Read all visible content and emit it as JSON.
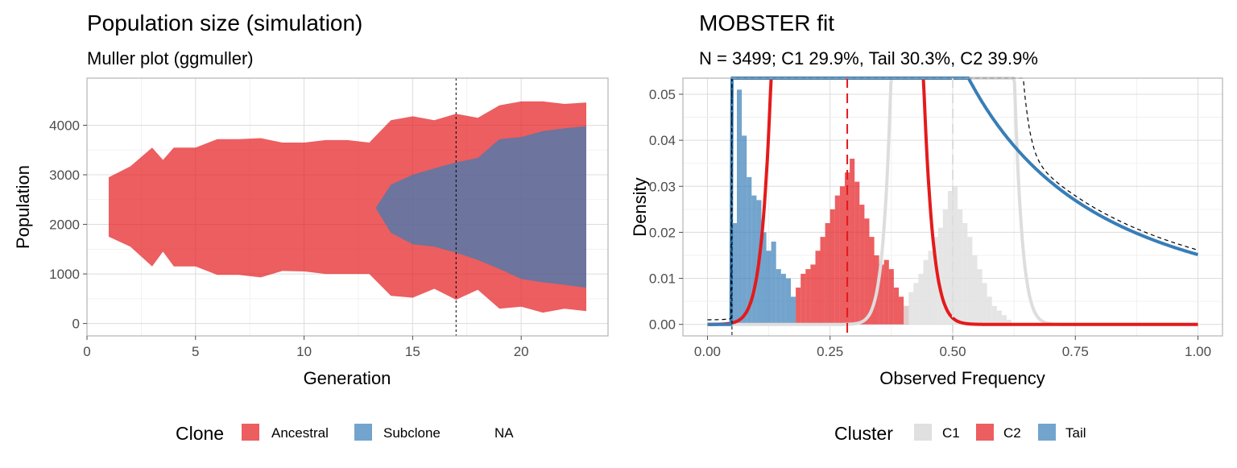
{
  "chart_data": [
    {
      "type": "area",
      "title": "Population size (simulation)",
      "subtitle": "Muller plot (ggmuller)",
      "xlabel": "Generation",
      "ylabel": "Population",
      "xlim": [
        0,
        24
      ],
      "ylim": [
        -250,
        4950
      ],
      "x_ticks": [
        0,
        5,
        10,
        15,
        20
      ],
      "x_tick_labels": [
        "0",
        "5",
        "10",
        "15",
        "20"
      ],
      "y_ticks": [
        0,
        1000,
        2000,
        3000,
        4000
      ],
      "y_tick_labels": [
        "0",
        "1000",
        "2000",
        "3000",
        "4000"
      ],
      "grid": true,
      "vline_x": 17,
      "legend": {
        "position": "bottom",
        "title": "Clone",
        "items": [
          {
            "label": "Ancestral",
            "color": "#E41A1C"
          },
          {
            "label": "Subclone",
            "color": "#377EB8"
          },
          {
            "label": "NA",
            "color": ""
          }
        ]
      },
      "series": [
        {
          "name": "Ancestral",
          "color": "#E41A1C",
          "x": [
            1,
            2,
            3,
            3.5,
            4,
            5,
            6,
            7,
            8,
            9,
            10,
            11,
            12,
            13,
            14,
            15,
            16,
            17,
            18,
            19,
            20,
            21,
            22,
            23
          ],
          "lower": [
            1750,
            1550,
            1150,
            1450,
            1150,
            1150,
            980,
            980,
            930,
            1060,
            1050,
            1000,
            1000,
            1000,
            560,
            520,
            700,
            480,
            680,
            300,
            340,
            220,
            300,
            250
          ],
          "upper": [
            2950,
            3170,
            3550,
            3300,
            3550,
            3550,
            3720,
            3720,
            3740,
            3650,
            3650,
            3700,
            3700,
            3650,
            4100,
            4180,
            4100,
            4230,
            4150,
            4400,
            4480,
            4480,
            4430,
            4460
          ]
        },
        {
          "name": "Subclone",
          "color": "#377EB8",
          "x": [
            13.3,
            14,
            15,
            16,
            17,
            18,
            19,
            20,
            21,
            22,
            23
          ],
          "lower": [
            2330,
            1830,
            1600,
            1550,
            1430,
            1280,
            1100,
            900,
            830,
            780,
            720
          ],
          "upper": [
            2330,
            2800,
            3000,
            3130,
            3250,
            3340,
            3720,
            3760,
            3880,
            3940,
            3980
          ]
        }
      ]
    },
    {
      "type": "bar",
      "title": "MOBSTER fit",
      "subtitle": "N = 3499; C1 29.9%, Tail 30.3%, C2 39.9%",
      "xlabel": "Observed Frequency",
      "ylabel": "Density",
      "xlim": [
        -0.05,
        1.05
      ],
      "ylim": [
        -0.0025,
        0.0535
      ],
      "x_ticks": [
        0.0,
        0.25,
        0.5,
        0.75,
        1.0
      ],
      "x_tick_labels": [
        "0.00",
        "0.25",
        "0.50",
        "0.75",
        "1.00"
      ],
      "y_ticks": [
        0.0,
        0.01,
        0.02,
        0.03,
        0.04,
        0.05
      ],
      "y_tick_labels": [
        "0.00",
        "0.01",
        "0.02",
        "0.03",
        "0.04",
        "0.05"
      ],
      "grid": true,
      "legend": {
        "position": "bottom",
        "title": "Cluster",
        "items": [
          {
            "label": "C1",
            "color": "#E0E0E0"
          },
          {
            "label": "C2",
            "color": "#E41A1C"
          },
          {
            "label": "Tail",
            "color": "#377EB8"
          }
        ]
      },
      "bin_width": 0.01,
      "histogram": [
        {
          "name": "Tail",
          "color": "#377EB8",
          "bins": [
            0.05,
            0.06,
            0.07,
            0.08,
            0.09,
            0.1,
            0.11,
            0.12,
            0.13,
            0.14,
            0.15,
            0.16,
            0.17
          ],
          "values": [
            0.022,
            0.051,
            0.041,
            0.032,
            0.028,
            0.027,
            0.02,
            0.016,
            0.018,
            0.012,
            0.011,
            0.01,
            0.006
          ]
        },
        {
          "name": "C2",
          "color": "#E41A1C",
          "bins": [
            0.18,
            0.19,
            0.2,
            0.21,
            0.22,
            0.23,
            0.24,
            0.25,
            0.26,
            0.27,
            0.28,
            0.29,
            0.3,
            0.31,
            0.32,
            0.33,
            0.34,
            0.35,
            0.36,
            0.37,
            0.38,
            0.39,
            0.4
          ],
          "values": [
            0.008,
            0.011,
            0.012,
            0.013,
            0.016,
            0.019,
            0.022,
            0.025,
            0.028,
            0.03,
            0.033,
            0.036,
            0.031,
            0.026,
            0.023,
            0.019,
            0.015,
            0.013,
            0.014,
            0.012,
            0.008,
            0.006,
            0.004
          ]
        },
        {
          "name": "C1",
          "color": "#E0E0E0",
          "bins": [
            0.4,
            0.41,
            0.42,
            0.43,
            0.44,
            0.45,
            0.46,
            0.47,
            0.48,
            0.49,
            0.5,
            0.51,
            0.52,
            0.53,
            0.54,
            0.55,
            0.56,
            0.57,
            0.58,
            0.59,
            0.6,
            0.61
          ],
          "values": [
            0.004,
            0.007,
            0.009,
            0.011,
            0.014,
            0.016,
            0.019,
            0.021,
            0.025,
            0.029,
            0.03,
            0.025,
            0.022,
            0.019,
            0.015,
            0.012,
            0.009,
            0.006,
            0.004,
            0.003,
            0.002,
            0.001
          ]
        }
      ],
      "density_curves": [
        {
          "name": "Tail",
          "kind": "pareto",
          "shape": 1.0,
          "scale": 0.05,
          "weight": 0.303,
          "color": "#377EB8"
        },
        {
          "name": "C2",
          "kind": "beta",
          "mean": 0.285,
          "sd": 0.055,
          "weight": 0.399,
          "color": "#E41A1C"
        },
        {
          "name": "C1",
          "kind": "beta",
          "mean": 0.5,
          "sd": 0.045,
          "weight": 0.299,
          "color": "#DDDDDD"
        }
      ],
      "mixture_curve": {
        "style": "dashed",
        "color": "#000000"
      },
      "vlines": [
        {
          "x": 0.05,
          "color": "#000000",
          "style": "dashed"
        },
        {
          "x": 0.285,
          "color": "#E41A1C",
          "style": "dashed"
        },
        {
          "x": 0.5,
          "color": "#DDDDDD",
          "style": "dashed"
        }
      ]
    }
  ]
}
